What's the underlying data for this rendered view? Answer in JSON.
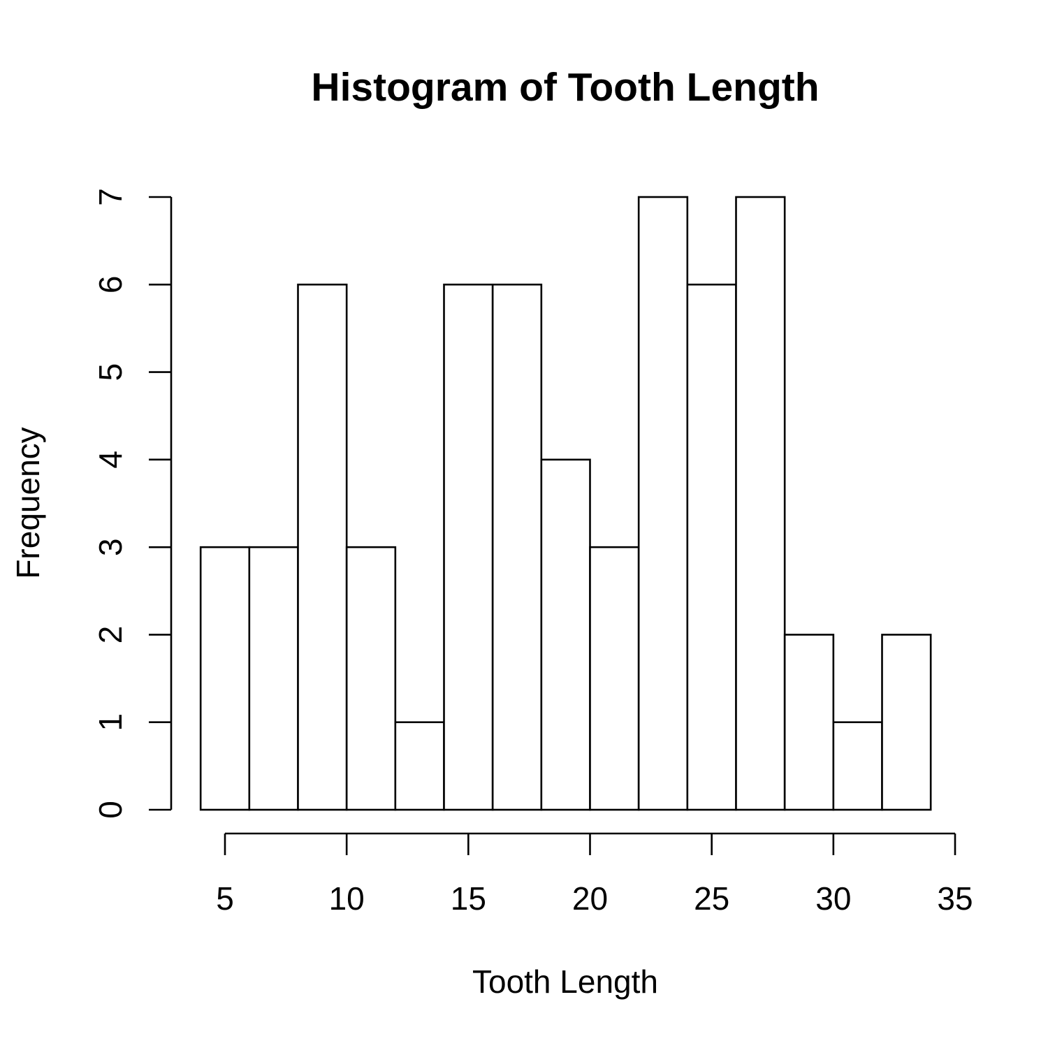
{
  "chart_data": {
    "type": "histogram",
    "title": "Histogram of Tooth Length",
    "xlabel": "Tooth Length",
    "ylabel": "Frequency",
    "bins": [
      {
        "start": 4,
        "end": 6,
        "count": 3
      },
      {
        "start": 6,
        "end": 8,
        "count": 3
      },
      {
        "start": 8,
        "end": 10,
        "count": 6
      },
      {
        "start": 10,
        "end": 12,
        "count": 3
      },
      {
        "start": 12,
        "end": 14,
        "count": 1
      },
      {
        "start": 14,
        "end": 16,
        "count": 6
      },
      {
        "start": 16,
        "end": 18,
        "count": 6
      },
      {
        "start": 18,
        "end": 20,
        "count": 4
      },
      {
        "start": 20,
        "end": 22,
        "count": 3
      },
      {
        "start": 22,
        "end": 24,
        "count": 7
      },
      {
        "start": 24,
        "end": 26,
        "count": 6
      },
      {
        "start": 26,
        "end": 28,
        "count": 7
      },
      {
        "start": 28,
        "end": 30,
        "count": 2
      },
      {
        "start": 30,
        "end": 32,
        "count": 1
      },
      {
        "start": 32,
        "end": 34,
        "count": 2
      }
    ],
    "x_ticks": [
      5,
      10,
      15,
      20,
      25,
      30,
      35
    ],
    "y_ticks": [
      0,
      1,
      2,
      3,
      4,
      5,
      6,
      7
    ],
    "xlim": [
      5,
      35
    ],
    "ylim": [
      0,
      7
    ],
    "grid": false,
    "colors": {
      "bar_fill": "#ffffff",
      "bar_stroke": "#000000"
    }
  }
}
